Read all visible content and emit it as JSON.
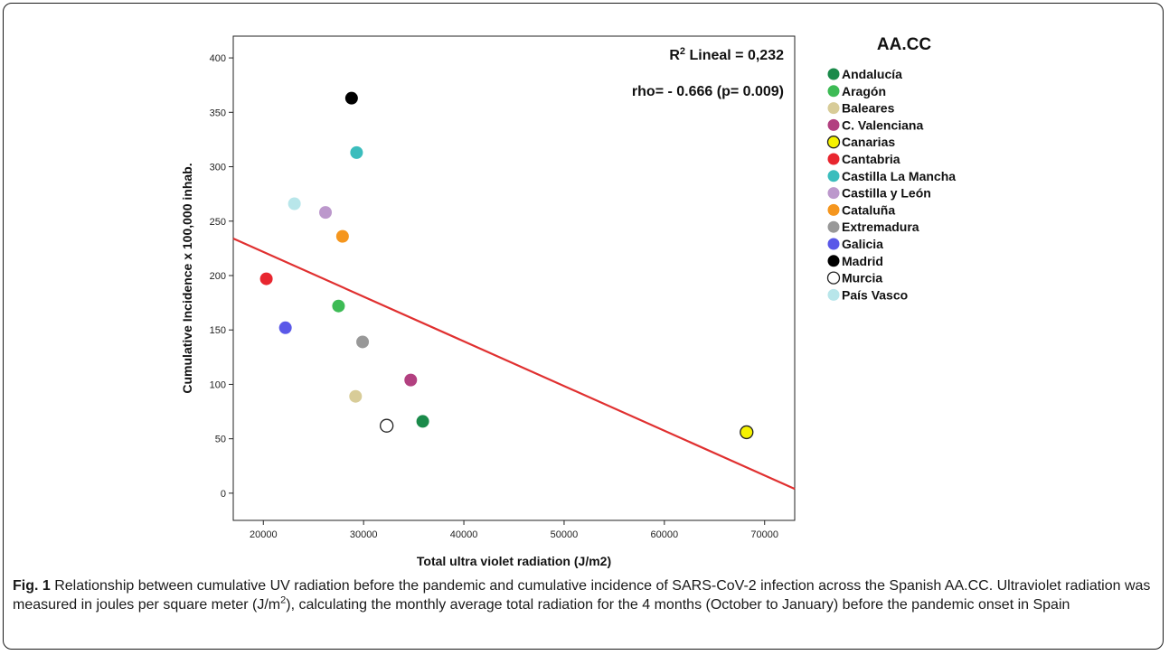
{
  "chart_data": {
    "type": "scatter",
    "xlabel": "Total ultra violet radiation (J/m2)",
    "ylabel": "Cumulative Incidence x 100,000 inhab.",
    "xlim": [
      17000,
      73000
    ],
    "ylim": [
      -25,
      420
    ],
    "x_ticks": [
      20000,
      30000,
      40000,
      50000,
      60000,
      70000
    ],
    "y_ticks": [
      0,
      50,
      100,
      150,
      200,
      250,
      300,
      350,
      400
    ],
    "grid": false,
    "legend": {
      "title": "AA.CC",
      "placement": "right"
    },
    "annotations": {
      "r2_prefix": "R",
      "r2_sup": "2",
      "r2_rest": " Lineal = 0,232",
      "rho": "rho= - 0.666 (p= 0.009)"
    },
    "fit_line": {
      "x": [
        17000,
        73000
      ],
      "y": [
        234,
        4
      ],
      "color": "#e03030"
    },
    "series": [
      {
        "name": "Andalucía",
        "x": 35900,
        "y": 66,
        "color": "#1a8a4a",
        "hollow": false
      },
      {
        "name": "Aragón",
        "x": 27500,
        "y": 172,
        "color": "#3dbb55",
        "hollow": false
      },
      {
        "name": "Baleares",
        "x": 29200,
        "y": 89,
        "color": "#d8cc98",
        "hollow": false
      },
      {
        "name": "C. Valenciana",
        "x": 34700,
        "y": 104,
        "color": "#b24080",
        "hollow": false
      },
      {
        "name": "Canarias",
        "x": 68200,
        "y": 56,
        "color": "#f5f200",
        "hollow": false
      },
      {
        "name": "Cantabria",
        "x": 20300,
        "y": 197,
        "color": "#e8262f",
        "hollow": false
      },
      {
        "name": "Castilla La Mancha",
        "x": 29300,
        "y": 313,
        "color": "#3bbdbd",
        "hollow": false
      },
      {
        "name": "Castilla y León",
        "x": 26200,
        "y": 258,
        "color": "#bc98cc",
        "hollow": false
      },
      {
        "name": "Cataluña",
        "x": 27900,
        "y": 236,
        "color": "#f5961e",
        "hollow": false
      },
      {
        "name": "Extremadura",
        "x": 29900,
        "y": 139,
        "color": "#989898",
        "hollow": false
      },
      {
        "name": "Galicia",
        "x": 22200,
        "y": 152,
        "color": "#5a58e8",
        "hollow": false
      },
      {
        "name": "Madrid",
        "x": 28800,
        "y": 363,
        "color": "#000000",
        "hollow": false
      },
      {
        "name": "Murcia",
        "x": 32300,
        "y": 62,
        "color": "#ffffff",
        "hollow": true
      },
      {
        "name": "País Vasco",
        "x": 23100,
        "y": 266,
        "color": "#b8e6ea",
        "hollow": false
      }
    ]
  },
  "caption": {
    "label": "Fig. 1",
    "text_a": " Relationship between cumulative UV radiation before the pandemic and cumulative incidence of SARS-CoV-2 infection across the Spanish AA.CC. Ultraviolet radiation was measured in joules per square meter (J/m",
    "sup": "2",
    "text_b": "), calculating the monthly average total radiation for the 4 months (October to January) before the pandemic onset in Spain"
  }
}
